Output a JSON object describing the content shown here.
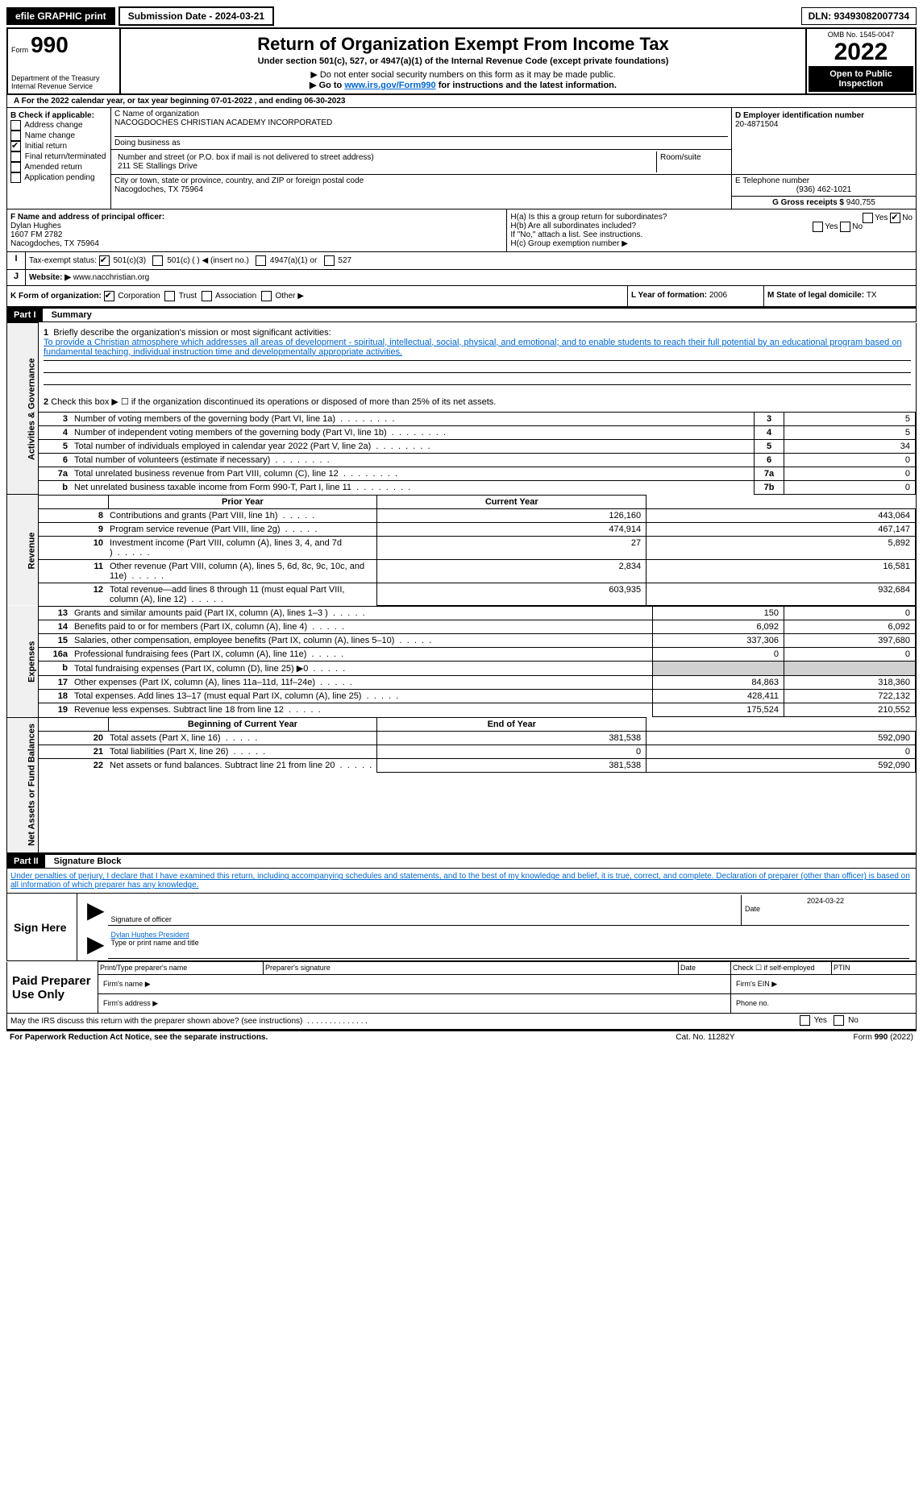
{
  "topbar": {
    "efile": "efile GRAPHIC print",
    "submission_label": "Submission Date - 2024-03-21",
    "dln": "DLN: 93493082007734"
  },
  "header": {
    "form_label": "Form",
    "form_no": "990",
    "dept": "Department of the Treasury",
    "irs": "Internal Revenue Service",
    "title": "Return of Organization Exempt From Income Tax",
    "subtitle": "Under section 501(c), 527, or 4947(a)(1) of the Internal Revenue Code (except private foundations)",
    "note1": "▶ Do not enter social security numbers on this form as it may be made public.",
    "note2_pre": "▶ Go to ",
    "note2_link": "www.irs.gov/Form990",
    "note2_post": " for instructions and the latest information.",
    "omb": "OMB No. 1545-0047",
    "year": "2022",
    "open": "Open to Public Inspection"
  },
  "line_a": "For the 2022 calendar year, or tax year beginning 07-01-2022    , and ending 06-30-2023",
  "section_b": {
    "label": "B Check if applicable:",
    "addr_change": "Address change",
    "name_change": "Name change",
    "initial": "Initial return",
    "final": "Final return/terminated",
    "amended": "Amended return",
    "app_pending": "Application pending"
  },
  "section_c": {
    "label": "C Name of organization",
    "org": "NACOGDOCHES CHRISTIAN ACADEMY INCORPORATED",
    "dba": "Doing business as",
    "street_label": "Number and street (or P.O. box if mail is not delivered to street address)",
    "street": "211 SE Stallings Drive",
    "room": "Room/suite",
    "city_label": "City or town, state or province, country, and ZIP or foreign postal code",
    "city": "Nacogdoches, TX  75964"
  },
  "section_d": {
    "label": "D Employer identification number",
    "ein": "20-4871504"
  },
  "section_e": {
    "label": "E Telephone number",
    "phone": "(936) 462-1021"
  },
  "section_g": {
    "label": "G Gross receipts $",
    "amount": "940,755"
  },
  "section_f": {
    "label": "F Name and address of principal officer:",
    "name": "Dylan Hughes",
    "addr1": "1607 FM 2782",
    "addr2": "Nacogdoches, TX  75964"
  },
  "section_h": {
    "ha": "H(a)  Is this a group return for subordinates?",
    "hb": "H(b)  Are all subordinates included?",
    "hb_note": "If \"No,\" attach a list. See instructions.",
    "hc": "H(c)  Group exemption number ▶",
    "yes": "Yes",
    "no": "No"
  },
  "section_i": {
    "label": "Tax-exempt status:",
    "opt1": "501(c)(3)",
    "opt2": "501(c) (   ) ◀ (insert no.)",
    "opt3": "4947(a)(1) or",
    "opt4": "527"
  },
  "section_j": {
    "label": "Website: ▶",
    "site": "www.nacchristian.org"
  },
  "section_k": {
    "label": "K Form of organization:",
    "corp": "Corporation",
    "trust": "Trust",
    "assoc": "Association",
    "other": "Other ▶"
  },
  "section_l": {
    "label": "L Year of formation: ",
    "year": "2006"
  },
  "section_m": {
    "label": "M State of legal domicile: ",
    "state": "TX"
  },
  "part1": {
    "label": "Part I",
    "title": "Summary",
    "q1_label": "1",
    "q1_text": "Briefly describe the organization's mission or most significant activities:",
    "q1_answer": "To provide a Christian atmosphere which addresses all areas of development - spiritual, intellectual, social, physical, and emotional; and to enable students to reach their full potential by an educational program based on fundamental teaching, individual instruction time and developmentally appropriate activities.",
    "q2": "Check this box ▶ ☐ if the organization discontinued its operations or disposed of more than 25% of its net assets.",
    "vert1": "Activities & Governance",
    "vert2": "Revenue",
    "vert3": "Expenses",
    "vert4": "Net Assets or Fund Balances",
    "rows_gov": [
      {
        "n": "3",
        "t": "Number of voting members of the governing body (Part VI, line 1a)",
        "b": "3",
        "v": "5"
      },
      {
        "n": "4",
        "t": "Number of independent voting members of the governing body (Part VI, line 1b)",
        "b": "4",
        "v": "5"
      },
      {
        "n": "5",
        "t": "Total number of individuals employed in calendar year 2022 (Part V, line 2a)",
        "b": "5",
        "v": "34"
      },
      {
        "n": "6",
        "t": "Total number of volunteers (estimate if necessary)",
        "b": "6",
        "v": "0"
      },
      {
        "n": "7a",
        "t": "Total unrelated business revenue from Part VIII, column (C), line 12",
        "b": "7a",
        "v": "0"
      },
      {
        "n": "b",
        "t": "Net unrelated business taxable income from Form 990-T, Part I, line 11",
        "b": "7b",
        "v": "0"
      }
    ],
    "col_prior": "Prior Year",
    "col_current": "Current Year",
    "rows_rev": [
      {
        "n": "8",
        "t": "Contributions and grants (Part VIII, line 1h)",
        "p": "126,160",
        "c": "443,064"
      },
      {
        "n": "9",
        "t": "Program service revenue (Part VIII, line 2g)",
        "p": "474,914",
        "c": "467,147"
      },
      {
        "n": "10",
        "t": "Investment income (Part VIII, column (A), lines 3, 4, and 7d )",
        "p": "27",
        "c": "5,892"
      },
      {
        "n": "11",
        "t": "Other revenue (Part VIII, column (A), lines 5, 6d, 8c, 9c, 10c, and 11e)",
        "p": "2,834",
        "c": "16,581"
      },
      {
        "n": "12",
        "t": "Total revenue—add lines 8 through 11 (must equal Part VIII, column (A), line 12)",
        "p": "603,935",
        "c": "932,684"
      }
    ],
    "rows_exp": [
      {
        "n": "13",
        "t": "Grants and similar amounts paid (Part IX, column (A), lines 1–3 )",
        "p": "150",
        "c": "0"
      },
      {
        "n": "14",
        "t": "Benefits paid to or for members (Part IX, column (A), line 4)",
        "p": "6,092",
        "c": "6,092"
      },
      {
        "n": "15",
        "t": "Salaries, other compensation, employee benefits (Part IX, column (A), lines 5–10)",
        "p": "337,306",
        "c": "397,680"
      },
      {
        "n": "16a",
        "t": "Professional fundraising fees (Part IX, column (A), line 11e)",
        "p": "0",
        "c": "0"
      },
      {
        "n": "b",
        "t": "Total fundraising expenses (Part IX, column (D), line 25) ▶0",
        "p": "",
        "c": "",
        "gray": true
      },
      {
        "n": "17",
        "t": "Other expenses (Part IX, column (A), lines 11a–11d, 11f–24e)",
        "p": "84,863",
        "c": "318,360"
      },
      {
        "n": "18",
        "t": "Total expenses. Add lines 13–17 (must equal Part IX, column (A), line 25)",
        "p": "428,411",
        "c": "722,132"
      },
      {
        "n": "19",
        "t": "Revenue less expenses. Subtract line 18 from line 12",
        "p": "175,524",
        "c": "210,552"
      }
    ],
    "col_begin": "Beginning of Current Year",
    "col_end": "End of Year",
    "rows_net": [
      {
        "n": "20",
        "t": "Total assets (Part X, line 16)",
        "p": "381,538",
        "c": "592,090"
      },
      {
        "n": "21",
        "t": "Total liabilities (Part X, line 26)",
        "p": "0",
        "c": "0"
      },
      {
        "n": "22",
        "t": "Net assets or fund balances. Subtract line 21 from line 20",
        "p": "381,538",
        "c": "592,090"
      }
    ]
  },
  "part2": {
    "label": "Part II",
    "title": "Signature Block",
    "statement": "Under penalties of perjury, I declare that I have examined this return, including accompanying schedules and statements, and to the best of my knowledge and belief, it is true, correct, and complete. Declaration of preparer (other than officer) is based on all information of which preparer has any knowledge.",
    "sign_here": "Sign Here",
    "sig_officer": "Signature of officer",
    "sig_date": "2024-03-22",
    "date_label": "Date",
    "name_title": "Dylan Hughes  President",
    "name_title_label": "Type or print name and title",
    "paid": "Paid Preparer Use Only",
    "print_name": "Print/Type preparer's name",
    "prep_sig": "Preparer's signature",
    "date2": "Date",
    "check_self": "Check ☐ if self-employed",
    "ptin": "PTIN",
    "firm_name": "Firm's name  ▶",
    "firm_ein": "Firm's EIN ▶",
    "firm_addr": "Firm's address ▶",
    "phone": "Phone no.",
    "may_irs": "May the IRS discuss this return with the preparer shown above? (see instructions)",
    "yes": "Yes",
    "no": "No"
  },
  "footer": {
    "left": "For Paperwork Reduction Act Notice, see the separate instructions.",
    "center": "Cat. No. 11282Y",
    "right": "Form 990 (2022)"
  }
}
